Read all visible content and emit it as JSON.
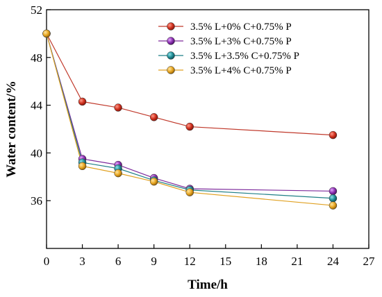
{
  "chart_data": {
    "type": "line",
    "xlabel": "Time/h",
    "ylabel": "Water content/%",
    "xlim": [
      0,
      27
    ],
    "ylim": [
      32,
      52
    ],
    "xticks": [
      0,
      3,
      6,
      9,
      12,
      15,
      18,
      21,
      24,
      27
    ],
    "yticks": [
      36,
      40,
      44,
      48,
      52
    ],
    "x": [
      0,
      3,
      6,
      9,
      12,
      24
    ],
    "grid": false,
    "legend_position": "top-right",
    "series": [
      {
        "name": "3.5% L+0% C+0.75% P",
        "color": "#c0392b",
        "values": [
          50.0,
          44.3,
          43.8,
          43.0,
          42.2,
          41.5
        ]
      },
      {
        "name": "3.5% L+3% C+0.75% P",
        "color": "#7d2a9c",
        "values": [
          50.0,
          39.5,
          39.0,
          37.9,
          37.0,
          36.8
        ]
      },
      {
        "name": "3.5% L+3.5% C+0.75% P",
        "color": "#1f7f86",
        "values": [
          50.0,
          39.2,
          38.7,
          37.7,
          36.9,
          36.2
        ]
      },
      {
        "name": "3.5% L+4% C+0.75% P",
        "color": "#e0a020",
        "values": [
          50.0,
          38.9,
          38.3,
          37.6,
          36.7,
          35.6
        ]
      }
    ]
  }
}
